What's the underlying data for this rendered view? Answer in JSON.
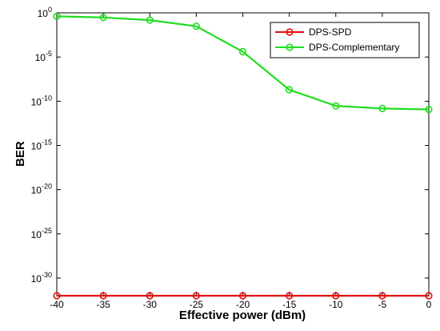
{
  "chart_data": {
    "type": "line",
    "xlabel": "Effective power (dBm)",
    "ylabel": "BER",
    "xlim": [
      -40,
      0
    ],
    "ylim_log10": [
      -32,
      0
    ],
    "y_scale": "log",
    "x_ticks": [
      -40,
      -35,
      -30,
      -25,
      -20,
      -15,
      -10,
      -5,
      0
    ],
    "y_ticks": [
      {
        "exp": 0,
        "base": "10",
        "sup": "0"
      },
      {
        "exp": -5,
        "base": "10",
        "sup": "-5"
      },
      {
        "exp": -10,
        "base": "10",
        "sup": "-10"
      },
      {
        "exp": -15,
        "base": "10",
        "sup": "-15"
      },
      {
        "exp": -20,
        "base": "10",
        "sup": "-20"
      },
      {
        "exp": -25,
        "base": "10",
        "sup": "-25"
      },
      {
        "exp": -30,
        "base": "10",
        "sup": "-30"
      }
    ],
    "grid": false,
    "legend_position": "top-right",
    "x": [
      -40,
      -35,
      -30,
      -25,
      -20,
      -15,
      -10,
      -5,
      0
    ],
    "series": [
      {
        "name": "DPS-SPD",
        "color": "#e01010",
        "values": [
          1e-32,
          1e-32,
          1e-32,
          1e-32,
          1e-32,
          1e-32,
          1e-32,
          1e-32,
          1e-32
        ]
      },
      {
        "name": "DPS-Complementary",
        "color": "#22dd22",
        "values": [
          0.4,
          0.3,
          0.15,
          0.03,
          4e-05,
          2e-09,
          3e-11,
          1.5e-11,
          1.2e-11
        ]
      }
    ]
  }
}
